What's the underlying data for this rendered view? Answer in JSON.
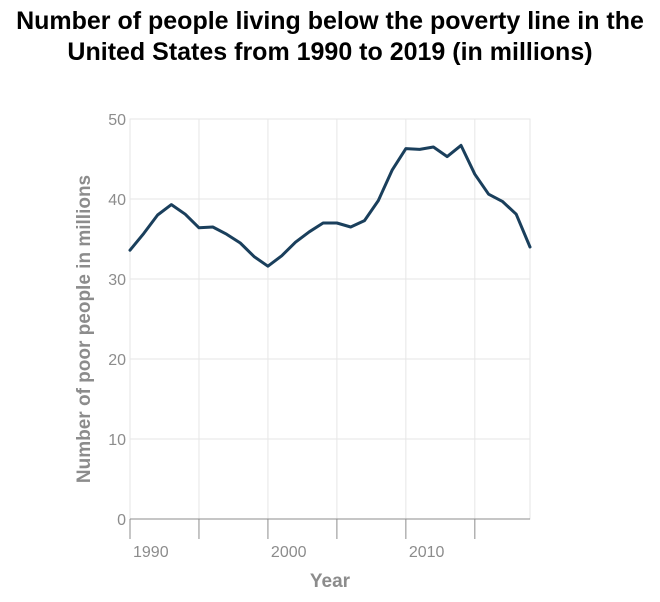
{
  "chart_data": {
    "type": "line",
    "title": "Number of people living below the poverty line in the United States from 1990 to 2019 (in millions)",
    "xlabel": "Year",
    "ylabel": "Number of poor people in millions",
    "xlim": [
      1990,
      2019
    ],
    "ylim": [
      0,
      50
    ],
    "x_ticks": [
      1990,
      2000,
      2010
    ],
    "x_tick_labels": [
      "1990",
      "2000",
      "2010"
    ],
    "y_ticks": [
      0,
      10,
      20,
      30,
      40,
      50
    ],
    "grid": true,
    "line_color": "#1a3f5c",
    "series": [
      {
        "x": [
          1990,
          1991,
          1992,
          1993,
          1994,
          1995,
          1996,
          1997,
          1998,
          1999,
          2000,
          2001,
          2002,
          2003,
          2004,
          2005,
          2006,
          2007,
          2008,
          2009,
          2010,
          2011,
          2012,
          2013,
          2014,
          2015,
          2016,
          2017,
          2018,
          2019
        ],
        "values": [
          33.6,
          35.7,
          38.0,
          39.3,
          38.1,
          36.4,
          36.5,
          35.6,
          34.5,
          32.8,
          31.6,
          32.9,
          34.6,
          35.9,
          37.0,
          37.0,
          36.5,
          37.3,
          39.8,
          43.6,
          46.3,
          46.2,
          46.5,
          45.3,
          46.7,
          43.1,
          40.6,
          39.7,
          38.1,
          34.0
        ]
      }
    ]
  }
}
